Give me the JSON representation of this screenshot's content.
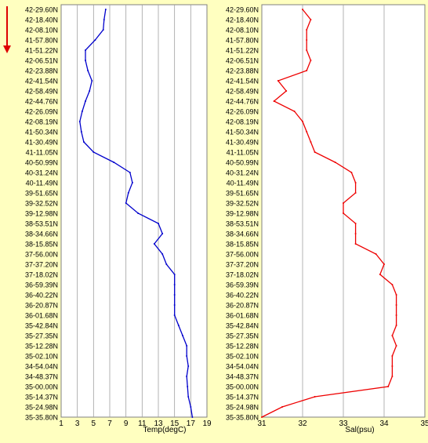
{
  "indicator": {
    "color": "#dd0000"
  },
  "chart_data": [
    {
      "type": "line",
      "xlabel": "Temp(degC)",
      "xlim": [
        1,
        19
      ],
      "xticks": [
        1,
        3,
        5,
        7,
        9,
        11,
        13,
        15,
        17,
        19
      ],
      "grid": true,
      "line_color": "#0000cc",
      "y_categories": [
        "42-29.60N",
        "42-18.40N",
        "42-08.10N",
        "41-57.80N",
        "41-51.22N",
        "42-06.51N",
        "42-23.88N",
        "42-41.54N",
        "42-58.49N",
        "42-44.76N",
        "42-26.09N",
        "42-08.19N",
        "41-50.34N",
        "41-30.49N",
        "41-11.05N",
        "40-50.99N",
        "40-31.24N",
        "40-11.49N",
        "39-51.65N",
        "39-32.52N",
        "39-12.98N",
        "38-53.51N",
        "38-34.66N",
        "38-15.85N",
        "37-56.00N",
        "37-37.20N",
        "37-18.02N",
        "36-59.39N",
        "36-40.22N",
        "36-20.87N",
        "36-01.68N",
        "35-42.84N",
        "35-27.35N",
        "35-12.28N",
        "35-02.10N",
        "34-54.04N",
        "34-48.37N",
        "35-00.00N",
        "35-14.37N",
        "35-24.98N",
        "35-35.80N"
      ],
      "values": [
        6.5,
        6.3,
        6.2,
        5.2,
        4.0,
        4.0,
        4.3,
        4.8,
        4.5,
        4.0,
        3.6,
        3.3,
        3.5,
        3.8,
        5.0,
        7.5,
        9.5,
        9.8,
        9.3,
        9.0,
        10.5,
        13.0,
        13.5,
        12.5,
        13.5,
        14.0,
        15.0,
        15.0,
        15.0,
        15.0,
        15.0,
        15.5,
        16.0,
        16.5,
        16.5,
        16.7,
        16.5,
        16.6,
        16.7,
        17.0,
        17.2
      ]
    },
    {
      "type": "line",
      "xlabel": "Sal(psu)",
      "xlim": [
        31,
        35
      ],
      "xticks": [
        31,
        32,
        33,
        34,
        35
      ],
      "grid": true,
      "line_color": "#ee0000",
      "values": [
        32.0,
        32.2,
        32.1,
        32.1,
        32.1,
        32.2,
        32.1,
        31.4,
        31.6,
        31.3,
        31.8,
        32.0,
        32.1,
        32.2,
        32.3,
        32.8,
        33.2,
        33.3,
        33.3,
        33.0,
        33.0,
        33.3,
        33.3,
        33.3,
        33.8,
        34.0,
        33.9,
        34.2,
        34.3,
        34.3,
        34.3,
        34.3,
        34.2,
        34.3,
        34.2,
        34.2,
        34.2,
        34.1,
        32.3,
        31.5,
        31.0
      ]
    }
  ]
}
